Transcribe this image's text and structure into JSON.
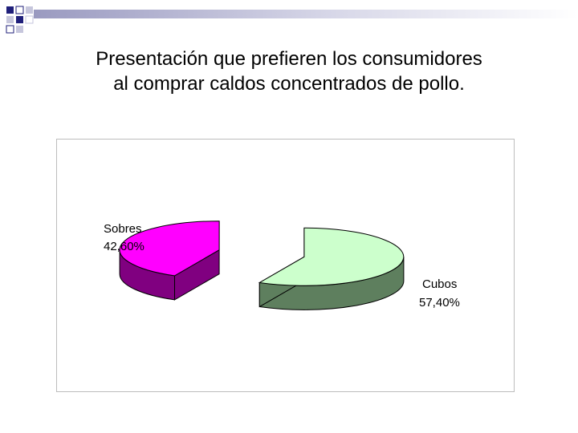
{
  "slide": {
    "title_line1": "Presentación que prefieren los consumidores",
    "title_line2": "al comprar caldos concentrados de pollo."
  },
  "colors": {
    "sobres_top": "#ff00ff",
    "sobres_side": "#800080",
    "cubos_top": "#ccffcc",
    "cubos_side": "#5e7f5e",
    "deco_dark": "#1f1f7a",
    "deco_light": "#c6c6dc"
  },
  "chart_data": {
    "type": "pie",
    "style": "3d-exploded",
    "title": "",
    "legend": "none",
    "slices": [
      {
        "name": "Sobres",
        "value": 42.6,
        "label": "Sobres",
        "value_label": "42,60%"
      },
      {
        "name": "Cubos",
        "value": 57.4,
        "label": "Cubos",
        "value_label": "57,40%"
      }
    ]
  }
}
